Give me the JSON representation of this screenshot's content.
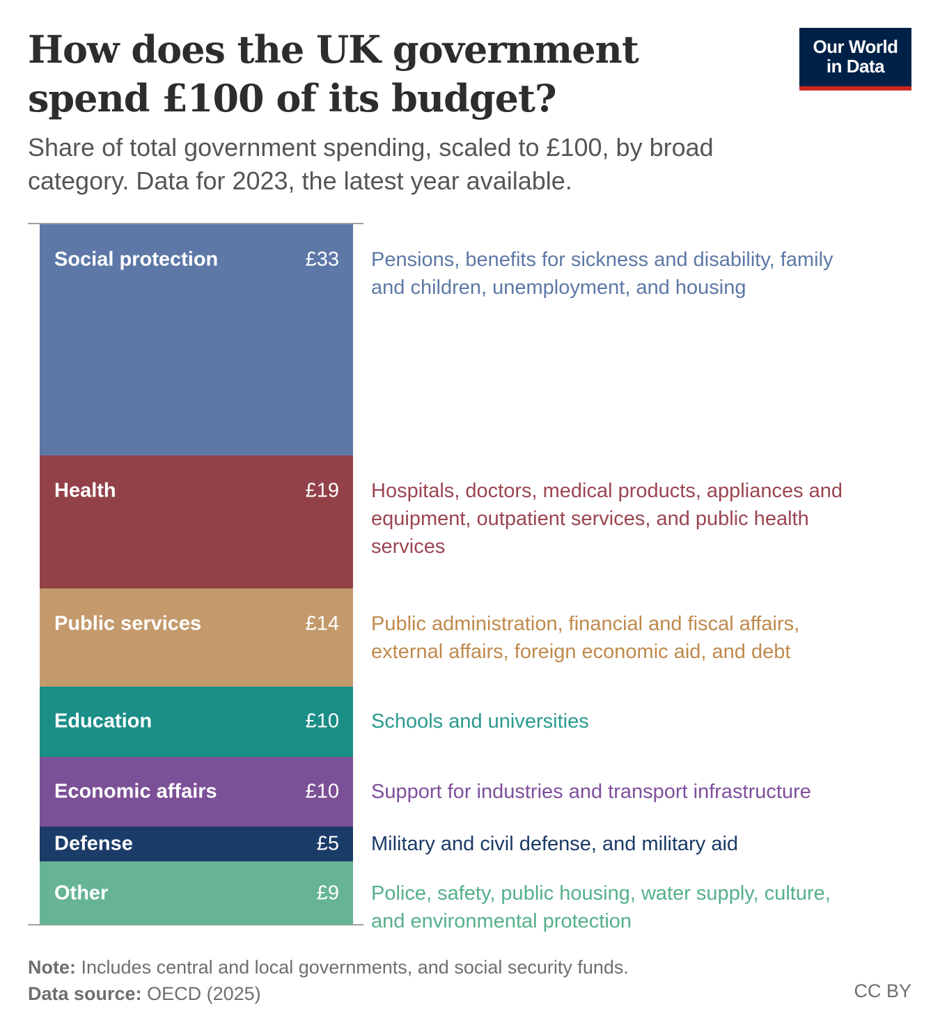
{
  "title": "How does the UK government spend £100 of its budget?",
  "subtitle": "Share of total government spending, scaled to £100, by broad category. Data for 2023, the latest year available.",
  "logo": {
    "line1": "Our World",
    "line2": "in Data"
  },
  "chart_data": {
    "type": "bar",
    "stacked": true,
    "orientation": "vertical-single-stack",
    "unit": "£",
    "total": 100,
    "categories": [
      "Social protection",
      "Health",
      "Public services",
      "Education",
      "Economic affairs",
      "Defense",
      "Other"
    ],
    "values": [
      33,
      19,
      14,
      10,
      10,
      5,
      9
    ],
    "value_labels": [
      "£33",
      "£19",
      "£14",
      "£10",
      "£10",
      "£5",
      "£9"
    ],
    "descriptions": [
      "Pensions, benefits for sickness and disability, family and children, unemployment, and housing",
      "Hospitals, doctors, medical products, appliances and equipment, outpatient services, and public health services",
      "Public administration, financial and fiscal affairs, external affairs, foreign economic aid, and debt",
      "Schools and universities",
      "Support for industries and transport infrastructure",
      "Military and civil defense, and military aid",
      "Police, safety, public housing, water supply, culture, and environmental protection"
    ],
    "colors": [
      "#5d78a6",
      "#934149",
      "#c49a6c",
      "#1b8e87",
      "#7c5096",
      "#1b3b68",
      "#66b495"
    ],
    "text_colors": [
      "#5d78a6",
      "#9a4550",
      "#bf8a4c",
      "#2a9a8e",
      "#7e4f9c",
      "#1a3a66",
      "#55b08a"
    ]
  },
  "footer": {
    "note_label": "Note:",
    "note_text": " Includes central and local governments, and social security funds.",
    "source_label": "Data source:",
    "source_text": " OECD (2025)",
    "license": "CC BY"
  }
}
